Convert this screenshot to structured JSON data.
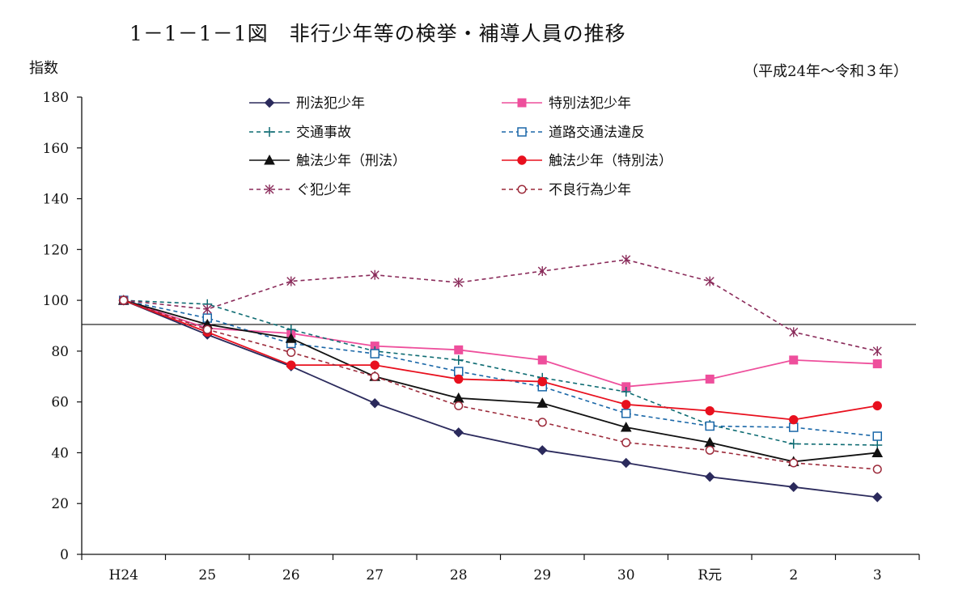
{
  "title": "1－1－1－1図　非行少年等の検挙・補導人員の推移",
  "subtitle": "（平成24年～令和３年）",
  "chart_data": {
    "type": "line",
    "ylabel": "指数",
    "xlabel": "",
    "categories": [
      "H24",
      "25",
      "26",
      "27",
      "28",
      "29",
      "30",
      "R元",
      "2",
      "3"
    ],
    "ylim": [
      0,
      180
    ],
    "yticks": [
      0,
      20,
      40,
      60,
      80,
      100,
      120,
      140,
      160,
      180
    ],
    "reference_line": 90.5,
    "grid": false,
    "legend_position": "top",
    "series": [
      {
        "name": "刑法犯少年",
        "values": [
          100,
          86.5,
          74,
          59.5,
          48,
          41,
          36,
          30.5,
          26.5,
          22.5
        ],
        "color": "#2b2a5c",
        "dash": "solid",
        "marker": "diamond"
      },
      {
        "name": "特別法犯少年",
        "values": [
          100,
          89,
          87,
          82,
          80.5,
          76.5,
          66,
          69,
          76.5,
          75
        ],
        "color": "#ee4f9c",
        "dash": "solid",
        "marker": "square"
      },
      {
        "name": "交通事故",
        "values": [
          100,
          98.5,
          88.5,
          80,
          76.5,
          69.5,
          64,
          51,
          43.5,
          43
        ],
        "color": "#0d6b72",
        "dash": "dashed",
        "marker": "plus"
      },
      {
        "name": "道路交通法違反",
        "values": [
          100,
          93,
          83,
          79,
          72,
          66,
          55.5,
          50.5,
          50,
          46.5
        ],
        "color": "#1a67a8",
        "dash": "dashed",
        "marker": "open-square"
      },
      {
        "name": "触法少年（刑法）",
        "values": [
          100,
          90.5,
          85,
          70,
          61.5,
          59.5,
          50,
          44,
          36.5,
          40
        ],
        "color": "#111111",
        "dash": "solid",
        "marker": "triangle"
      },
      {
        "name": "触法少年（特別法）",
        "values": [
          100,
          87.5,
          74.5,
          74.5,
          69,
          68,
          59,
          56.5,
          53,
          58.5
        ],
        "color": "#e8101e",
        "dash": "solid",
        "marker": "circle"
      },
      {
        "name": "ぐ犯少年",
        "values": [
          100,
          96.5,
          107.5,
          110,
          107,
          111.5,
          116,
          107.5,
          87.5,
          80
        ],
        "color": "#8a2b5a",
        "dash": "dashed",
        "marker": "asterisk"
      },
      {
        "name": "不良行為少年",
        "values": [
          100,
          88.5,
          79.5,
          70,
          58.5,
          52,
          44,
          41,
          36,
          33.5
        ],
        "color": "#9c2a3a",
        "dash": "dashed",
        "marker": "open-circle"
      }
    ]
  }
}
